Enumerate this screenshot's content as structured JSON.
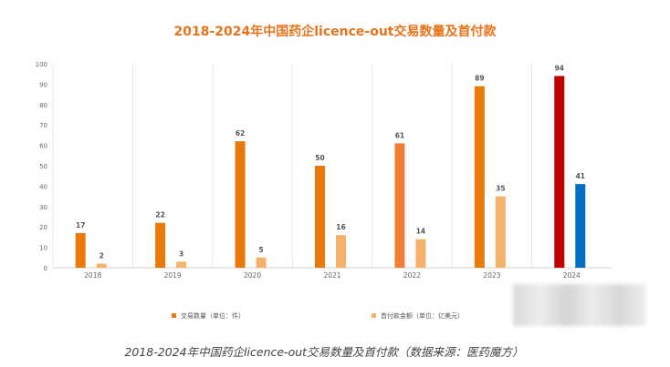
{
  "colors": {
    "title": "#e8731a",
    "count_bar": "#e8790a",
    "count_bar_2022": "#ef8134",
    "count_bar_2024": "#c00000",
    "amount_bar": "#f6b26b",
    "amount_bar_2024": "#0070c0",
    "grid": "#e8e8e8",
    "tick": "#666666",
    "label": "#555555",
    "caption": "#444444"
  },
  "chart_data": {
    "type": "bar",
    "title": "2018-2024年中国药企licence-out交易数量及首付款",
    "caption": "2018-2024年中国药企licence-out交易数量及首付款（数据来源：医药魔方）",
    "categories": [
      "2018",
      "2019",
      "2020",
      "2021",
      "2022",
      "2023",
      "2024"
    ],
    "series": [
      {
        "name": "交易数量（单位：件）",
        "values": [
          17,
          22,
          62,
          50,
          61,
          89,
          94
        ]
      },
      {
        "name": "首付款金额（单位：亿美元）",
        "values": [
          2,
          3,
          5,
          16,
          14,
          35,
          41
        ]
      }
    ],
    "ylim": [
      0,
      100
    ],
    "yticks": [
      0,
      10,
      20,
      30,
      40,
      50,
      60,
      70,
      80,
      90,
      100
    ],
    "grid": "vertical category separators",
    "legend_position": "bottom"
  }
}
